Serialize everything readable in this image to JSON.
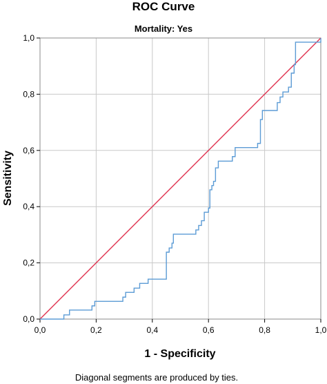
{
  "chart_data": {
    "type": "line",
    "title": "ROC Curve",
    "subtitle": "Mortality: Yes",
    "xlabel": "1 - Specificity",
    "ylabel": "Sensitivity",
    "footnote": "Diagonal segments are produced by ties.",
    "xlim": [
      0,
      1
    ],
    "ylim": [
      0,
      1
    ],
    "grid": true,
    "x_ticks": [
      "0,0",
      "0,2",
      "0,4",
      "0,6",
      "0,8",
      "1,0"
    ],
    "y_ticks": [
      "0,0",
      "0,2",
      "0,4",
      "0,6",
      "0,8",
      "1,0"
    ],
    "colors": {
      "roc": "#5b9bd5",
      "reference": "#e0314f",
      "grid": "#c8c8c8"
    },
    "series": [
      {
        "points": [
          [
            0.0,
            0.0
          ],
          [
            0.085,
            0.0
          ],
          [
            0.085,
            0.015
          ],
          [
            0.105,
            0.015
          ],
          [
            0.105,
            0.032
          ],
          [
            0.185,
            0.032
          ],
          [
            0.185,
            0.047
          ],
          [
            0.195,
            0.047
          ],
          [
            0.195,
            0.063
          ],
          [
            0.295,
            0.063
          ],
          [
            0.295,
            0.078
          ],
          [
            0.305,
            0.078
          ],
          [
            0.305,
            0.095
          ],
          [
            0.335,
            0.095
          ],
          [
            0.335,
            0.11
          ],
          [
            0.355,
            0.11
          ],
          [
            0.355,
            0.127
          ],
          [
            0.385,
            0.127
          ],
          [
            0.385,
            0.142
          ],
          [
            0.45,
            0.142
          ],
          [
            0.45,
            0.238
          ],
          [
            0.46,
            0.238
          ],
          [
            0.46,
            0.253
          ],
          [
            0.47,
            0.253
          ],
          [
            0.47,
            0.27
          ],
          [
            0.475,
            0.27
          ],
          [
            0.475,
            0.302
          ],
          [
            0.555,
            0.302
          ],
          [
            0.555,
            0.317
          ],
          [
            0.565,
            0.317
          ],
          [
            0.565,
            0.333
          ],
          [
            0.575,
            0.333
          ],
          [
            0.575,
            0.35
          ],
          [
            0.585,
            0.35
          ],
          [
            0.585,
            0.38
          ],
          [
            0.59,
            0.38
          ],
          [
            0.6,
            0.38
          ],
          [
            0.6,
            0.395
          ],
          [
            0.605,
            0.395
          ],
          [
            0.605,
            0.46
          ],
          [
            0.612,
            0.46
          ],
          [
            0.612,
            0.475
          ],
          [
            0.618,
            0.475
          ],
          [
            0.618,
            0.49
          ],
          [
            0.625,
            0.49
          ],
          [
            0.625,
            0.538
          ],
          [
            0.635,
            0.538
          ],
          [
            0.635,
            0.562
          ],
          [
            0.685,
            0.562
          ],
          [
            0.685,
            0.578
          ],
          [
            0.695,
            0.578
          ],
          [
            0.695,
            0.61
          ],
          [
            0.775,
            0.61
          ],
          [
            0.775,
            0.625
          ],
          [
            0.785,
            0.625
          ],
          [
            0.785,
            0.71
          ],
          [
            0.792,
            0.71
          ],
          [
            0.792,
            0.742
          ],
          [
            0.845,
            0.742
          ],
          [
            0.845,
            0.77
          ],
          [
            0.855,
            0.77
          ],
          [
            0.855,
            0.79
          ],
          [
            0.865,
            0.79
          ],
          [
            0.865,
            0.808
          ],
          [
            0.885,
            0.808
          ],
          [
            0.885,
            0.825
          ],
          [
            0.895,
            0.825
          ],
          [
            0.895,
            0.875
          ],
          [
            0.905,
            0.875
          ],
          [
            0.905,
            0.905
          ],
          [
            0.91,
            0.905
          ],
          [
            0.91,
            0.985
          ],
          [
            1.0,
            0.985
          ],
          [
            1.0,
            1.0
          ]
        ]
      },
      {
        "points": [
          [
            0,
            0
          ],
          [
            1,
            1
          ]
        ]
      }
    ]
  }
}
